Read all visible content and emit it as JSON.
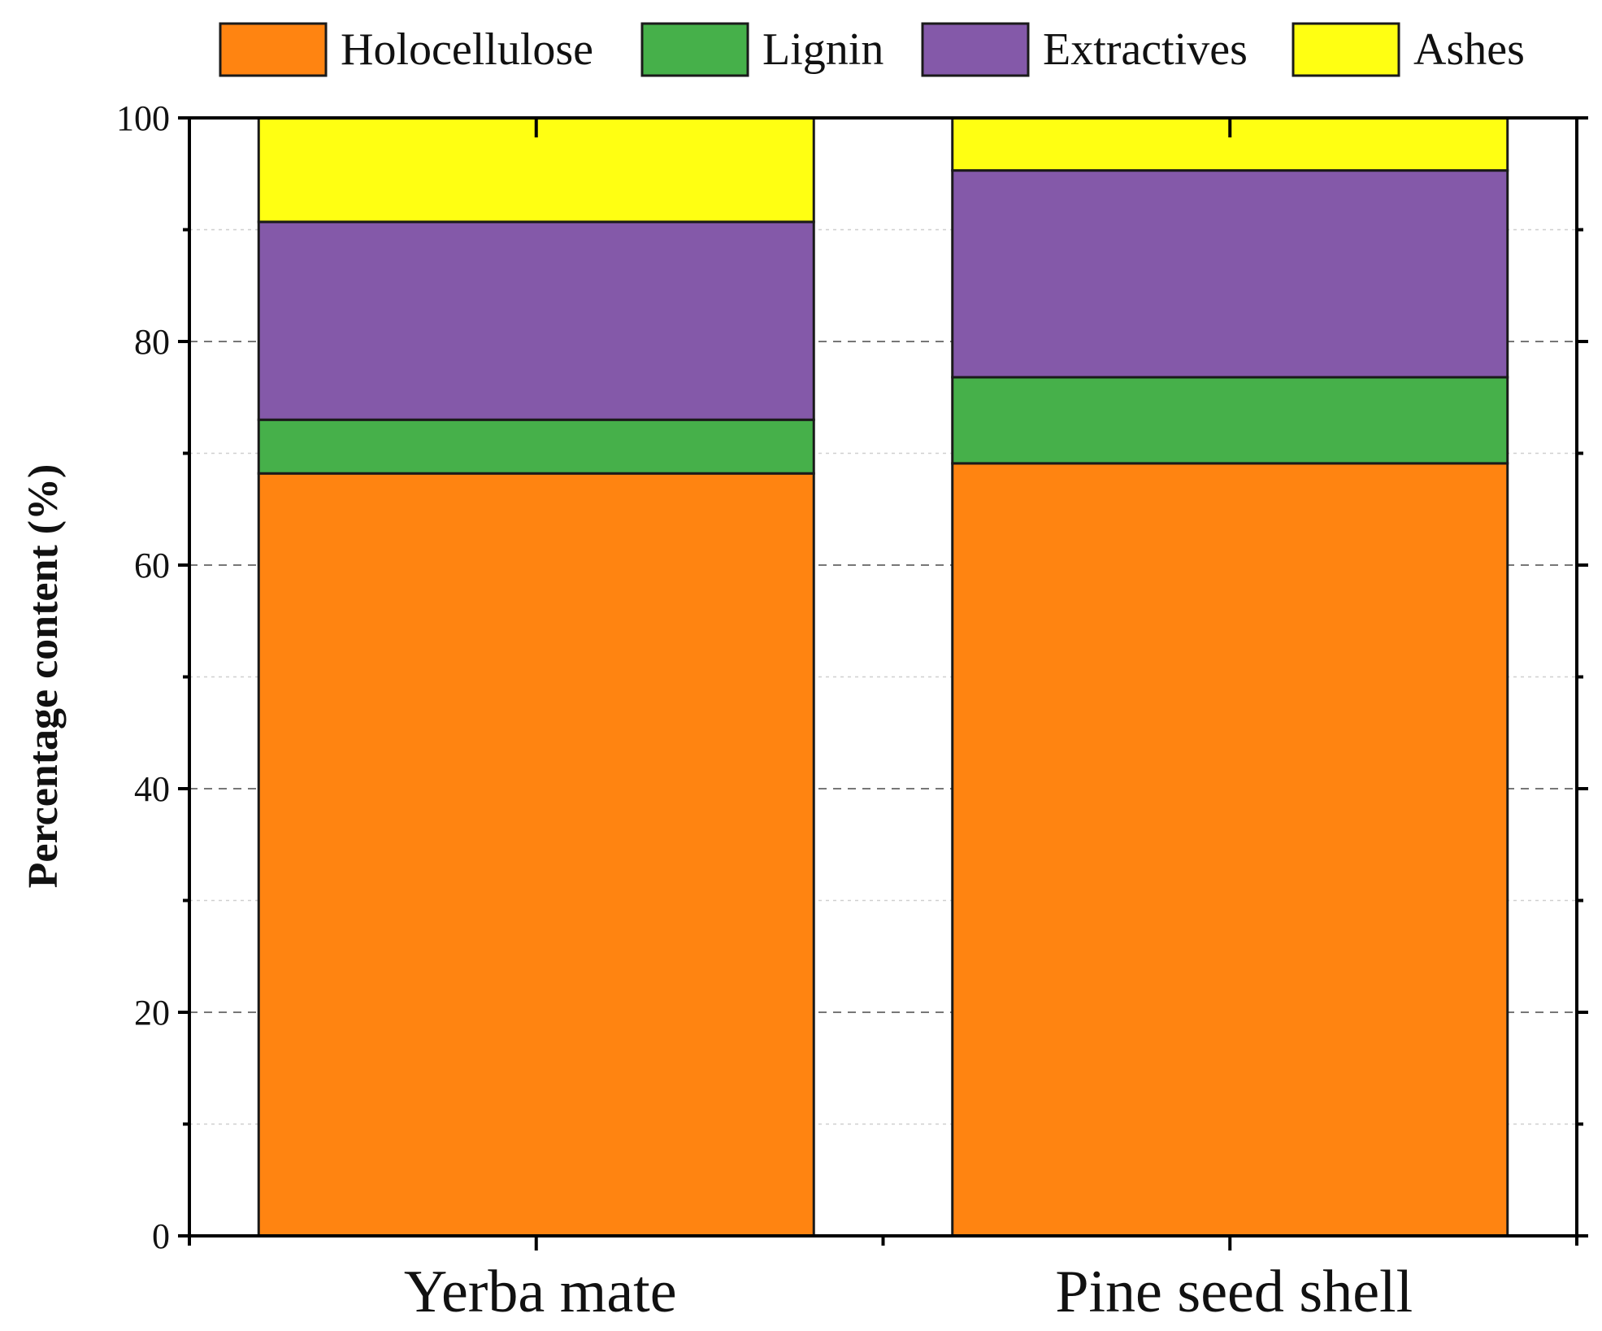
{
  "chart_data": {
    "type": "bar",
    "stacked": true,
    "title": "",
    "xlabel": "",
    "ylabel": "Percentage content (%)",
    "ylim": [
      0,
      100
    ],
    "yticks": [
      0,
      20,
      40,
      60,
      80,
      100
    ],
    "grid": true,
    "legend_position": "top",
    "categories": [
      "Yerba mate",
      "Pine seed shell"
    ],
    "series": [
      {
        "name": "Holocellulose",
        "color": "#ff8411",
        "values": [
          68.2,
          69.1
        ]
      },
      {
        "name": "Lignin",
        "color": "#46b04a",
        "values": [
          4.8,
          7.7
        ]
      },
      {
        "name": "Extractives",
        "color": "#8459a9",
        "values": [
          17.7,
          18.5
        ]
      },
      {
        "name": "Ashes",
        "color": "#ffff12",
        "values": [
          9.3,
          4.7
        ]
      }
    ]
  }
}
